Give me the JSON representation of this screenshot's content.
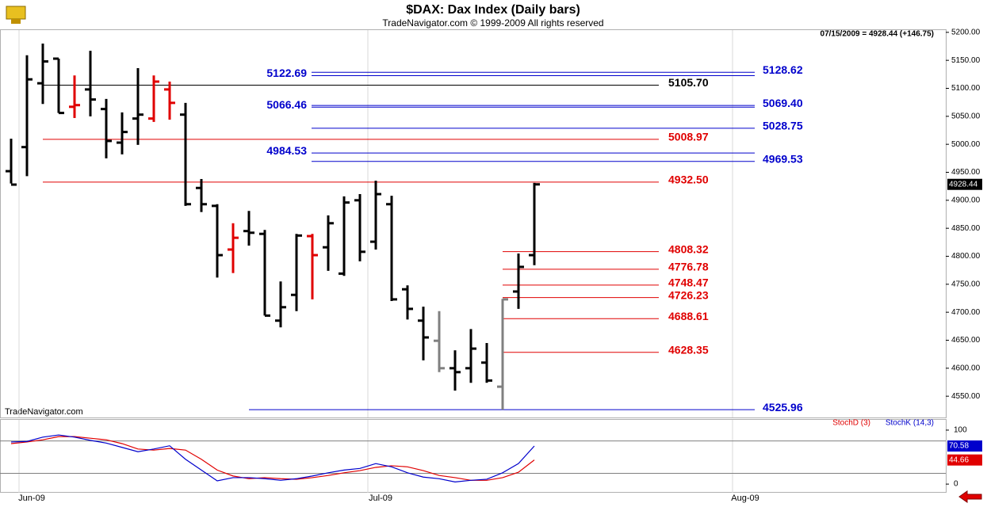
{
  "chart_data": [
    {
      "type": "ohlc",
      "title": "$DAX:  Dax Index  (Daily bars)",
      "subtitle": "TradeNavigator.com © 1999-2009 All rights reserved",
      "header_note": "07/15/2009 = 4928.44 (+146.75)",
      "watermark": "TradeNavigator.com",
      "x": [
        0,
        1,
        2,
        3,
        4,
        5,
        6,
        7,
        8,
        9,
        10,
        11,
        12,
        13,
        14,
        15,
        16,
        17,
        18,
        19,
        20,
        21,
        22,
        23,
        24,
        25,
        26,
        27,
        28,
        29,
        30,
        31,
        32,
        33
      ],
      "open": [
        4952,
        4995,
        5109,
        5153,
        5067,
        5098,
        5063,
        5003,
        5046,
        5046,
        5098,
        5053,
        4922,
        4890,
        4812,
        4845,
        4840,
        4685,
        4731,
        4836,
        4816,
        4769,
        4900,
        4826,
        4893,
        4741,
        4685,
        4649,
        4600,
        4600,
        4610,
        4567,
        4737,
        4802
      ],
      "high": [
        5010,
        5159,
        5180,
        5153,
        5123,
        5167,
        5081,
        5057,
        5136,
        5123,
        5112,
        5074,
        4938,
        4893,
        4859,
        4881,
        4847,
        4755,
        4840,
        4840,
        4873,
        4907,
        4911,
        4935,
        4908,
        4748,
        4710,
        4702,
        4632,
        4670,
        4645,
        4724,
        4805,
        4931
      ],
      "low": [
        4930,
        4943,
        5072,
        5056,
        5047,
        5050,
        4975,
        4982,
        4999,
        5040,
        5044,
        4890,
        4879,
        4762,
        4770,
        4819,
        4694,
        4673,
        4702,
        4723,
        4774,
        4765,
        4791,
        4812,
        4720,
        4687,
        4614,
        4593,
        4560,
        4574,
        4574,
        4526,
        4706,
        4784
      ],
      "close": [
        4928,
        5116,
        5148,
        5056,
        5070,
        5080,
        5006,
        5022,
        5053,
        5112,
        5074,
        4893,
        4893,
        4802,
        4833,
        4842,
        4694,
        4709,
        4837,
        4802,
        4859,
        4896,
        4808,
        4911,
        4723,
        4706,
        4655,
        4600,
        4593,
        4635,
        4578,
        4723,
        4781,
        4928.44
      ],
      "colors": [
        "#000000",
        "#000000",
        "#000000",
        "#000000",
        "#e00000",
        "#000000",
        "#000000",
        "#000000",
        "#000000",
        "#e00000",
        "#e00000",
        "#000000",
        "#000000",
        "#000000",
        "#e00000",
        "#000000",
        "#000000",
        "#000000",
        "#000000",
        "#e00000",
        "#000000",
        "#000000",
        "#000000",
        "#000000",
        "#000000",
        "#000000",
        "#000000",
        "#808080",
        "#000000",
        "#000000",
        "#000000",
        "#808080",
        "#000000",
        "#000000"
      ],
      "xlim": [
        -0.7,
        58.95
      ],
      "xticks": [
        {
          "value": 0.5,
          "label": "Jun-09"
        },
        {
          "value": 22.5,
          "label": "Jul-09"
        },
        {
          "value": 45.5,
          "label": "Aug-09"
        }
      ],
      "ylim": [
        4512,
        5204
      ],
      "yticks": [
        {
          "value": 4550,
          "label": "4550.00"
        },
        {
          "value": 4600,
          "label": "4600.00"
        },
        {
          "value": 4650,
          "label": "4650.00"
        },
        {
          "value": 4700,
          "label": "4700.00"
        },
        {
          "value": 4750,
          "label": "4750.00"
        },
        {
          "value": 4800,
          "label": "4800.00"
        },
        {
          "value": 4850,
          "label": "4850.00"
        },
        {
          "value": 4900,
          "label": "4900.00"
        },
        {
          "value": 4950,
          "label": "4950.00"
        },
        {
          "value": 5000,
          "label": "5000.00"
        },
        {
          "value": 5050,
          "label": "5050.00"
        },
        {
          "value": 5100,
          "label": "5100.00"
        },
        {
          "value": 5150,
          "label": "5150.00"
        },
        {
          "value": 5200,
          "label": "5200.00"
        }
      ],
      "levels": {
        "values": [
          5128.62,
          5122.69,
          5105.7,
          5069.4,
          5066.46,
          5028.75,
          5008.97,
          4984.53,
          4969.53,
          4932.5,
          4808.32,
          4776.78,
          4748.47,
          4726.23,
          4688.61,
          4628.35,
          4525.96
        ],
        "value_labels": [
          "5128.62",
          "5122.69",
          "5105.70",
          "5069.40",
          "5066.46",
          "5028.75",
          "5008.97",
          "4984.53",
          "4969.53",
          "4932.50",
          "4808.32",
          "4776.78",
          "4748.47",
          "4726.23",
          "4688.61",
          "4628.35",
          "4525.96"
        ],
        "colors": [
          "#0000cc",
          "#0000cc",
          "#000000",
          "#0000cc",
          "#0000cc",
          "#0000cc",
          "#e00000",
          "#0000cc",
          "#0000cc",
          "#e00000",
          "#e00000",
          "#e00000",
          "#e00000",
          "#e00000",
          "#e00000",
          "#e00000",
          "#0000cc"
        ]
      }
    },
    {
      "type": "line",
      "x": [
        0,
        1,
        2,
        3,
        4,
        5,
        6,
        7,
        8,
        9,
        10,
        11,
        12,
        13,
        14,
        15,
        16,
        17,
        18,
        19,
        20,
        21,
        22,
        23,
        24,
        25,
        26,
        27,
        28,
        29,
        30,
        31,
        32,
        33
      ],
      "xlim": [
        -0.7,
        58.95
      ],
      "ylim": [
        -16,
        119
      ],
      "yticks": [
        0,
        100
      ],
      "reference_lines": [
        20,
        80
      ],
      "series": [
        {
          "name": "StochD (3)",
          "color": "#e00000",
          "values": [
            75,
            78,
            82,
            88,
            88,
            85,
            82,
            75,
            65,
            63,
            66,
            63,
            46,
            26,
            15,
            10,
            12,
            10,
            9,
            12,
            16,
            21,
            25,
            31,
            34,
            32,
            25,
            16,
            12,
            7,
            7,
            12,
            22,
            44.66
          ]
        },
        {
          "name": "StochK (14,3)",
          "color": "#0000cc",
          "values": [
            78,
            79,
            87,
            91,
            87,
            81,
            76,
            68,
            60,
            65,
            71,
            46,
            26,
            6,
            12,
            12,
            10,
            7,
            10,
            15,
            21,
            26,
            29,
            38,
            32,
            21,
            13,
            10,
            4,
            7,
            9,
            21,
            38,
            70.58
          ]
        }
      ]
    }
  ]
}
